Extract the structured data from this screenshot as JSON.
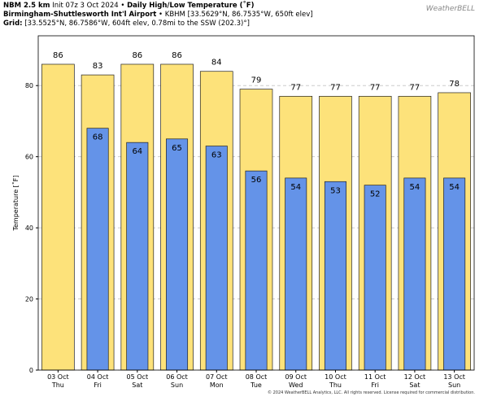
{
  "header": {
    "model": "NBM 2.5 km",
    "init": "Init 07z 3 Oct 2024",
    "product": "Daily High/Low Temperature (˚F)",
    "station": "Birmingham-Shuttlesworth Int'l Airport",
    "station_info": "KBHM [33.5629°N, 86.7535°W, 650ft elev]",
    "grid_label": "Grid:",
    "grid_info": "[33.5525°N, 86.7586°W, 604ft elev, 0.78mi to the SSW (202.3)°]",
    "logo": "WeatherBELL"
  },
  "chart_data": {
    "type": "bar",
    "ylabel": "Temperature [˚F]",
    "categories": [
      "03 Oct",
      "04 Oct",
      "05 Oct",
      "06 Oct",
      "07 Oct",
      "08 Oct",
      "09 Oct",
      "10 Oct",
      "11 Oct",
      "12 Oct",
      "13 Oct"
    ],
    "weekdays": [
      "Thu",
      "Fri",
      "Sat",
      "Sun",
      "Mon",
      "Tue",
      "Wed",
      "Thu",
      "Fri",
      "Sat",
      "Sun"
    ],
    "series": [
      {
        "color": "#fde27a",
        "values": [
          86,
          83,
          86,
          86,
          84,
          79,
          77,
          77,
          77,
          77,
          78
        ]
      },
      {
        "color": "#6493e8",
        "values": [
          null,
          68,
          64,
          65,
          63,
          56,
          54,
          53,
          52,
          54,
          54
        ]
      }
    ],
    "ylim": [
      0,
      94
    ],
    "yticks": [
      0,
      20,
      40,
      60,
      80
    ],
    "grid": true
  },
  "footer": "© 2024 WeatherBELL Analytics, LLC. All rights reserved. License required for commercial distribution."
}
